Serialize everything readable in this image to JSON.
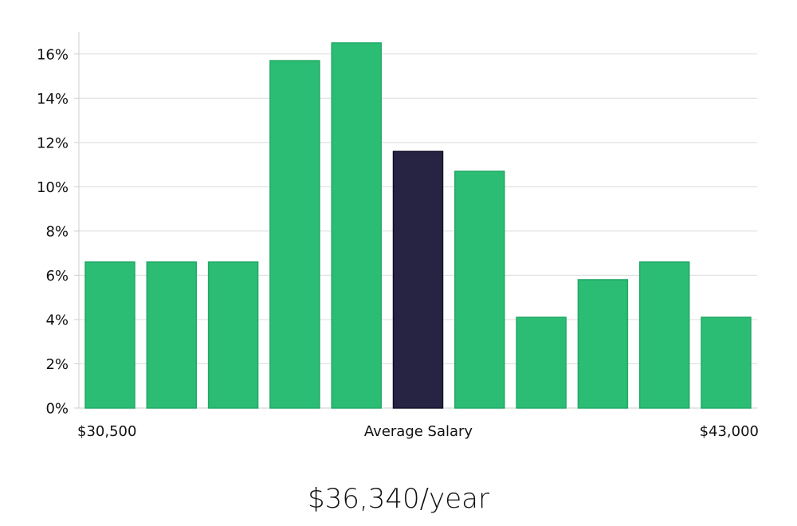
{
  "chart_data": {
    "type": "bar",
    "values": [
      6.6,
      6.6,
      6.6,
      15.7,
      16.5,
      11.6,
      10.7,
      4.1,
      5.8,
      6.6,
      4.1
    ],
    "highlight_index": 5,
    "ylim": [
      0,
      17
    ],
    "yticks": [
      0,
      2,
      4,
      6,
      8,
      10,
      12,
      14,
      16
    ],
    "ytick_suffix": "%",
    "x_labels": {
      "min": "$30,500",
      "center": "Average Salary",
      "max": "$43,000"
    },
    "grid": true,
    "colors": {
      "bar": "#2bbd74",
      "bar_stroke": "#22a866",
      "highlight": "#272343",
      "highlight_stroke": "#141028",
      "grid": "#dcdcdc",
      "axis": "#cfcfcf"
    }
  },
  "footer": {
    "salary": "$36,340/year"
  }
}
